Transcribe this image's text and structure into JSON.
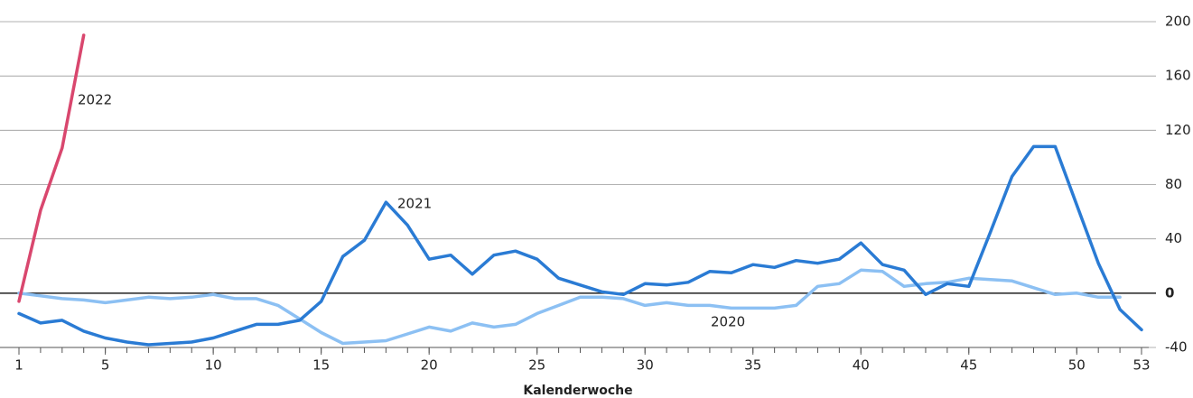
{
  "chart_data": {
    "type": "line",
    "x_label": "Kalenderwoche",
    "x": [
      1,
      2,
      3,
      4,
      5,
      6,
      7,
      8,
      9,
      10,
      11,
      12,
      13,
      14,
      15,
      16,
      17,
      18,
      19,
      20,
      21,
      22,
      23,
      24,
      25,
      26,
      27,
      28,
      29,
      30,
      31,
      32,
      33,
      34,
      35,
      36,
      37,
      38,
      39,
      40,
      41,
      42,
      43,
      44,
      45,
      46,
      47,
      48,
      49,
      50,
      51,
      52,
      53
    ],
    "xlim": [
      1,
      53
    ],
    "xticks": [
      1,
      5,
      10,
      15,
      20,
      25,
      30,
      35,
      40,
      45,
      50,
      53
    ],
    "ylim": [
      -40,
      200
    ],
    "yticks": [
      -40,
      0,
      40,
      80,
      120,
      160,
      200
    ],
    "grid": true,
    "series": [
      {
        "name": "2020",
        "color": "#8cc0f3",
        "values": [
          0,
          -2,
          -4,
          -5,
          -7,
          -5,
          -3,
          -4,
          -3,
          -1,
          -4,
          -4,
          -9,
          -19,
          -29,
          -37,
          -36,
          -35,
          -30,
          -25,
          -28,
          -22,
          -25,
          -23,
          -15,
          -9,
          -3,
          -3,
          -4,
          -9,
          -7,
          -9,
          -9,
          -11,
          -11,
          -11,
          -9,
          5,
          7,
          17,
          16,
          5,
          7,
          8,
          11,
          10,
          9,
          4,
          -1,
          0,
          -3,
          -3,
          null
        ]
      },
      {
        "name": "2021",
        "color": "#2a7bd4",
        "values": [
          -15,
          -22,
          -20,
          -28,
          -33,
          -36,
          -38,
          -37,
          -36,
          -33,
          -28,
          -23,
          -23,
          -20,
          -6,
          27,
          39,
          67,
          50,
          25,
          28,
          14,
          28,
          31,
          25,
          11,
          6,
          1,
          -1,
          7,
          6,
          8,
          16,
          15,
          21,
          19,
          24,
          22,
          25,
          37,
          21,
          17,
          -1,
          7,
          5,
          45,
          86,
          108,
          108,
          65,
          22,
          -12,
          -27
        ]
      },
      {
        "name": "2022",
        "color": "#d9476e",
        "values": [
          -6,
          61,
          107,
          190,
          null,
          null,
          null,
          null,
          null,
          null,
          null,
          null,
          null,
          null,
          null,
          null,
          null,
          null,
          null,
          null,
          null,
          null,
          null,
          null,
          null,
          null,
          null,
          null,
          null,
          null,
          null,
          null,
          null,
          null,
          null,
          null,
          null,
          null,
          null,
          null,
          null,
          null,
          null,
          null,
          null,
          null,
          null,
          null,
          null,
          null,
          null,
          null,
          null
        ]
      }
    ]
  }
}
